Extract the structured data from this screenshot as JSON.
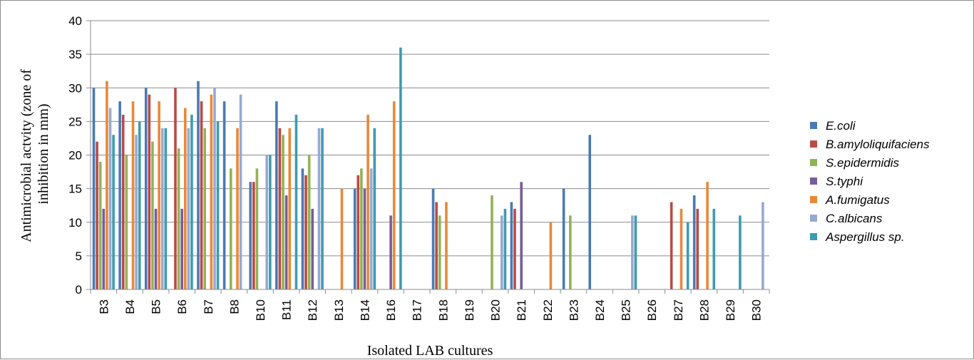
{
  "chart_data": {
    "type": "bar",
    "title": "",
    "xlabel": "Isolated LAB cultures",
    "ylabel_lines": [
      "Antimicrobial actvity (zone of",
      "inhibition in mm)"
    ],
    "ylim": [
      0,
      40
    ],
    "yticks": [
      "0",
      "5",
      "10",
      "15",
      "20",
      "25",
      "30",
      "35",
      "40"
    ],
    "grid": "horizontal",
    "legend_position": "right",
    "categories": [
      "B3",
      "B4",
      "B5",
      "B6",
      "B7",
      "B8",
      "B10",
      "B11",
      "B12",
      "B13",
      "B14",
      "B16",
      "B17",
      "B18",
      "B19",
      "B20",
      "B21",
      "B22",
      "B23",
      "B24",
      "B25",
      "B26",
      "B27",
      "B28",
      "B29",
      "B30"
    ],
    "series": [
      {
        "name": "E.coli",
        "color": "#4a7ab5",
        "values": [
          30,
          28,
          30,
          0,
          31,
          28,
          16,
          28,
          18,
          0,
          15,
          0,
          0,
          15,
          0,
          0,
          13,
          0,
          15,
          23,
          0,
          0,
          0,
          14,
          0,
          0
        ]
      },
      {
        "name": "B.amyloliquifaciens",
        "color": "#b84b47",
        "values": [
          22,
          26,
          29,
          30,
          28,
          0,
          16,
          24,
          17,
          0,
          17,
          0,
          0,
          13,
          0,
          0,
          12,
          0,
          0,
          0,
          0,
          0,
          13,
          12,
          0,
          0
        ]
      },
      {
        "name": "S.epidermidis",
        "color": "#93b254",
        "values": [
          19,
          20,
          22,
          21,
          24,
          18,
          18,
          23,
          20,
          0,
          18,
          0,
          0,
          11,
          0,
          14,
          0,
          0,
          11,
          0,
          0,
          0,
          0,
          0,
          0,
          0
        ]
      },
      {
        "name": "S.typhi",
        "color": "#775d99",
        "values": [
          12,
          0,
          12,
          12,
          0,
          0,
          0,
          14,
          12,
          0,
          15,
          11,
          0,
          0,
          0,
          0,
          16,
          0,
          0,
          0,
          0,
          0,
          0,
          0,
          0,
          0
        ]
      },
      {
        "name": "A.fumigatus",
        "color": "#e8893a",
        "values": [
          31,
          28,
          28,
          27,
          29,
          24,
          0,
          24,
          0,
          15,
          26,
          28,
          0,
          13,
          0,
          0,
          0,
          10,
          0,
          0,
          0,
          0,
          12,
          16,
          0,
          0
        ]
      },
      {
        "name": "C.albicans",
        "color": "#97a9d3",
        "values": [
          27,
          23,
          24,
          24,
          30,
          29,
          20,
          0,
          24,
          0,
          18,
          0,
          0,
          0,
          0,
          11,
          0,
          0,
          0,
          0,
          11,
          0,
          0,
          0,
          0,
          13
        ]
      },
      {
        "name": "Aspergillus sp.",
        "color": "#3d9caf",
        "values": [
          23,
          25,
          24,
          26,
          25,
          0,
          20,
          26,
          24,
          0,
          24,
          36,
          0,
          0,
          0,
          12,
          0,
          0,
          0,
          0,
          11,
          0,
          10,
          12,
          11,
          0
        ]
      }
    ]
  }
}
